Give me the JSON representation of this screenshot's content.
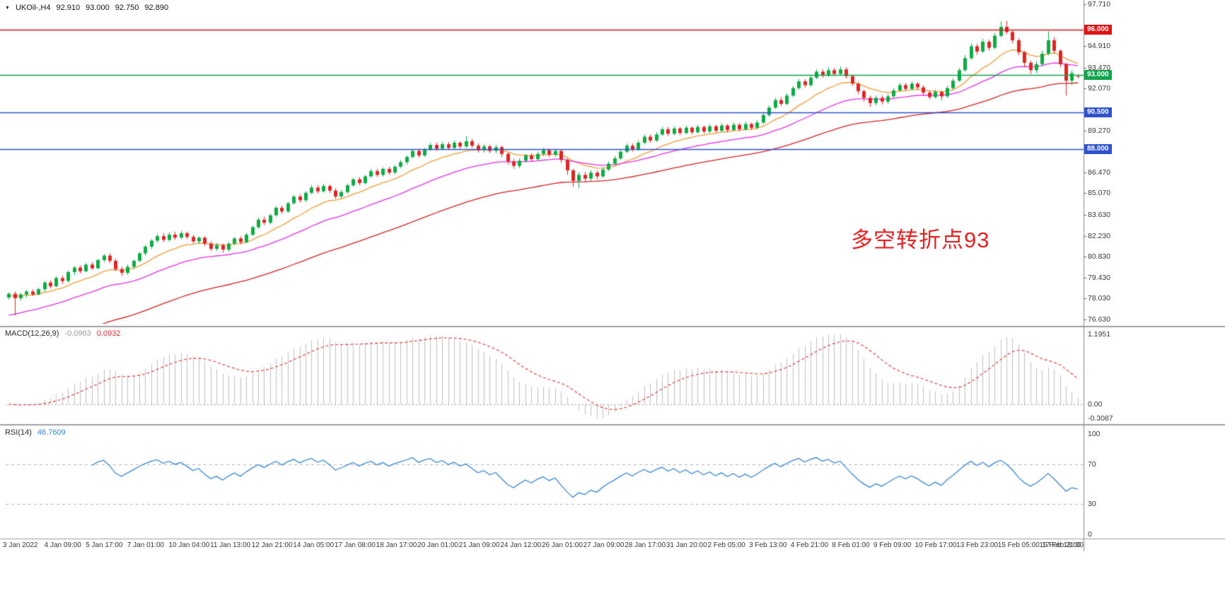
{
  "header": {
    "marker": "▼",
    "symbol": "UKOil-,H4",
    "open": "92.910",
    "high": "93.000",
    "low": "92.750",
    "close": "92.890"
  },
  "colors": {
    "up": "#0fab45",
    "down": "#e02525",
    "macd_hist": "#c0c0c0",
    "macd_signal": "#e03030",
    "rsi_line": "#3a87d4",
    "separator": "#a0a0a0",
    "axis_line": "#8a8a8a",
    "axis_text": "#3a3a3a"
  },
  "chart_data": {
    "type": "candlestick",
    "symbol": "UKOil-",
    "timeframe": "H4",
    "title": "UKOil-,H4 92.910 93.000 92.750 92.890",
    "ylim": [
      76.63,
      97.71
    ],
    "y_ticks": [
      "97.710",
      "94.910",
      "93.470",
      "92.070",
      "89.270",
      "86.470",
      "85.070",
      "83.630",
      "82.230",
      "80.830",
      "79.430",
      "78.030",
      "76.630"
    ],
    "x_ticks": [
      "3 Jan 2022",
      "4 Jan 09:00",
      "5 Jan 17:00",
      "7 Jan 01:00",
      "10 Jan 04:00",
      "11 Jan 13:00",
      "12 Jan 21:00",
      "14 Jan 05:00",
      "17 Jan 08:00",
      "18 Jan 17:00",
      "20 Jan 01:00",
      "21 Jan 09:00",
      "24 Jan 12:00",
      "26 Jan 01:00",
      "27 Jan 09:00",
      "28 Jan 17:00",
      "31 Jan 20:00",
      "2 Feb 05:00",
      "3 Feb 13:00",
      "4 Feb 21:00",
      "8 Feb 01:00",
      "9 Feb 09:00",
      "10 Feb 17:00",
      "13 Feb 23:00",
      "15 Feb 05:00",
      "16 Feb 13:00",
      "17 Feb 21:00"
    ],
    "levels": [
      {
        "price": 96.0,
        "label": "96.000",
        "color": "#e01414"
      },
      {
        "price": 93.0,
        "label": "93.000",
        "color": "#10a54a"
      },
      {
        "price": 90.5,
        "label": "90.500",
        "color": "#2d52cc"
      },
      {
        "price": 88.0,
        "label": "88.000",
        "color": "#2d52cc"
      }
    ],
    "overlays": [
      {
        "name": "ma-fast",
        "color": "#f29b38",
        "period": 12,
        "seed": 78.2
      },
      {
        "name": "ma-mid",
        "color": "#e62ee6",
        "period": 28,
        "seed": 76.8
      },
      {
        "name": "ma-slow",
        "color": "#d62020",
        "period": 60,
        "seed": 74.0
      }
    ],
    "macd": {
      "label": "MACD(12,26,9)",
      "fast": 12,
      "slow": 26,
      "signal": 9,
      "value_text": "-0.0963",
      "signal_text": "0.0932",
      "axis_max": "1.1951",
      "axis_zero": "0.00",
      "axis_min": "-0.3087"
    },
    "rsi": {
      "label": "RSI(14)",
      "period": 14,
      "value_text": "46.7609",
      "levels": [
        70,
        30
      ],
      "axis": [
        "100",
        "70",
        "30",
        "0"
      ]
    },
    "annotation": {
      "text": "多空转折点93",
      "color": "#e82222"
    },
    "candles": [
      [
        78.1,
        78.45,
        77.95,
        78.35
      ],
      [
        78.35,
        78.5,
        76.9,
        78.05
      ],
      [
        78.05,
        78.4,
        77.9,
        78.3
      ],
      [
        78.3,
        78.6,
        78.1,
        78.5
      ],
      [
        78.5,
        78.65,
        78.2,
        78.3
      ],
      [
        78.3,
        78.75,
        78.25,
        78.65
      ],
      [
        78.65,
        79.2,
        78.5,
        79.1
      ],
      [
        79.1,
        79.25,
        78.7,
        78.85
      ],
      [
        78.85,
        79.5,
        78.8,
        79.4
      ],
      [
        79.4,
        79.55,
        79.0,
        79.2
      ],
      [
        79.2,
        79.9,
        79.1,
        79.8
      ],
      [
        79.8,
        80.2,
        79.6,
        80.1
      ],
      [
        80.1,
        80.25,
        79.7,
        79.85
      ],
      [
        79.85,
        80.4,
        79.8,
        80.3
      ],
      [
        80.3,
        80.45,
        79.95,
        80.05
      ],
      [
        80.05,
        80.7,
        80.0,
        80.6
      ],
      [
        80.6,
        81.0,
        80.45,
        80.9
      ],
      [
        80.9,
        81.05,
        80.4,
        80.55
      ],
      [
        80.55,
        80.7,
        79.85,
        80.0
      ],
      [
        80.0,
        80.15,
        79.55,
        79.75
      ],
      [
        79.75,
        80.3,
        79.6,
        80.15
      ],
      [
        80.15,
        80.65,
        80.0,
        80.55
      ],
      [
        80.55,
        81.15,
        80.45,
        81.05
      ],
      [
        81.05,
        81.6,
        80.9,
        81.5
      ],
      [
        81.5,
        82.0,
        81.35,
        81.9
      ],
      [
        81.9,
        82.35,
        81.75,
        82.2
      ],
      [
        82.2,
        82.4,
        81.8,
        81.95
      ],
      [
        81.95,
        82.45,
        81.85,
        82.3
      ],
      [
        82.3,
        82.5,
        81.95,
        82.1
      ],
      [
        82.1,
        82.55,
        82.0,
        82.4
      ],
      [
        82.4,
        82.5,
        82.0,
        82.15
      ],
      [
        82.15,
        82.3,
        81.7,
        81.85
      ],
      [
        81.85,
        82.2,
        81.7,
        82.1
      ],
      [
        82.1,
        82.2,
        81.55,
        81.7
      ],
      [
        81.7,
        81.85,
        81.2,
        81.35
      ],
      [
        81.35,
        81.75,
        81.2,
        81.6
      ],
      [
        81.6,
        81.7,
        81.1,
        81.3
      ],
      [
        81.3,
        81.8,
        81.15,
        81.7
      ],
      [
        81.7,
        82.15,
        81.6,
        82.05
      ],
      [
        82.05,
        82.2,
        81.65,
        81.8
      ],
      [
        81.8,
        82.4,
        81.7,
        82.3
      ],
      [
        82.3,
        82.9,
        82.2,
        82.8
      ],
      [
        82.8,
        83.45,
        82.7,
        83.3
      ],
      [
        83.3,
        83.5,
        82.95,
        83.1
      ],
      [
        83.1,
        83.7,
        83.0,
        83.6
      ],
      [
        83.6,
        84.2,
        83.5,
        84.1
      ],
      [
        84.1,
        84.25,
        83.7,
        83.85
      ],
      [
        83.85,
        84.5,
        83.75,
        84.4
      ],
      [
        84.4,
        84.95,
        84.3,
        84.85
      ],
      [
        84.85,
        85.0,
        84.45,
        84.6
      ],
      [
        84.6,
        85.2,
        84.5,
        85.1
      ],
      [
        85.1,
        85.6,
        85.0,
        85.45
      ],
      [
        85.45,
        85.6,
        85.05,
        85.2
      ],
      [
        85.2,
        85.7,
        85.1,
        85.55
      ],
      [
        85.55,
        85.65,
        85.1,
        85.25
      ],
      [
        85.25,
        85.4,
        84.7,
        84.85
      ],
      [
        84.85,
        85.3,
        84.7,
        85.15
      ],
      [
        85.15,
        85.7,
        85.05,
        85.6
      ],
      [
        85.6,
        86.1,
        85.5,
        86.0
      ],
      [
        86.0,
        86.15,
        85.6,
        85.75
      ],
      [
        85.75,
        86.3,
        85.65,
        86.2
      ],
      [
        86.2,
        86.7,
        86.1,
        86.55
      ],
      [
        86.55,
        86.7,
        86.15,
        86.3
      ],
      [
        86.3,
        86.8,
        86.2,
        86.7
      ],
      [
        86.7,
        86.85,
        86.3,
        86.45
      ],
      [
        86.45,
        86.95,
        86.35,
        86.85
      ],
      [
        86.85,
        87.3,
        86.75,
        87.15
      ],
      [
        87.15,
        87.6,
        87.0,
        87.5
      ],
      [
        87.5,
        88.0,
        87.4,
        87.9
      ],
      [
        87.9,
        88.05,
        87.45,
        87.6
      ],
      [
        87.6,
        88.1,
        87.5,
        88.0
      ],
      [
        88.0,
        88.45,
        87.9,
        88.3
      ],
      [
        88.3,
        88.45,
        87.9,
        88.05
      ],
      [
        88.05,
        88.5,
        87.95,
        88.35
      ],
      [
        88.35,
        88.5,
        87.95,
        88.1
      ],
      [
        88.1,
        88.6,
        88.0,
        88.45
      ],
      [
        88.45,
        88.55,
        88.05,
        88.2
      ],
      [
        88.2,
        88.9,
        88.1,
        88.55
      ],
      [
        88.55,
        88.7,
        88.1,
        88.25
      ],
      [
        88.25,
        88.4,
        87.8,
        87.95
      ],
      [
        87.95,
        88.35,
        87.8,
        88.2
      ],
      [
        88.2,
        88.3,
        87.75,
        87.9
      ],
      [
        87.9,
        88.3,
        87.75,
        88.15
      ],
      [
        88.15,
        88.25,
        87.5,
        87.7
      ],
      [
        87.7,
        87.8,
        87.0,
        87.2
      ],
      [
        87.2,
        87.35,
        86.7,
        86.9
      ],
      [
        86.9,
        87.4,
        86.75,
        87.25
      ],
      [
        87.25,
        87.7,
        87.1,
        87.6
      ],
      [
        87.6,
        87.75,
        87.2,
        87.35
      ],
      [
        87.35,
        87.85,
        87.25,
        87.7
      ],
      [
        87.7,
        88.1,
        87.55,
        87.95
      ],
      [
        87.95,
        88.05,
        87.5,
        87.65
      ],
      [
        87.65,
        88.0,
        87.5,
        87.9
      ],
      [
        87.9,
        88.0,
        87.1,
        87.3
      ],
      [
        87.3,
        87.4,
        86.3,
        86.6
      ],
      [
        86.6,
        86.7,
        85.5,
        85.9
      ],
      [
        85.9,
        86.5,
        85.4,
        86.3
      ],
      [
        86.3,
        86.5,
        85.8,
        86.05
      ],
      [
        86.05,
        86.6,
        85.9,
        86.45
      ],
      [
        86.45,
        86.6,
        86.0,
        86.2
      ],
      [
        86.2,
        86.8,
        86.1,
        86.65
      ],
      [
        86.65,
        87.2,
        86.55,
        87.05
      ],
      [
        87.05,
        87.55,
        86.95,
        87.4
      ],
      [
        87.4,
        87.95,
        87.3,
        87.85
      ],
      [
        87.85,
        88.4,
        87.75,
        88.25
      ],
      [
        88.25,
        88.4,
        87.85,
        88.0
      ],
      [
        88.0,
        88.6,
        87.9,
        88.45
      ],
      [
        88.45,
        89.0,
        88.35,
        88.85
      ],
      [
        88.85,
        89.0,
        88.45,
        88.6
      ],
      [
        88.6,
        89.15,
        88.5,
        89.0
      ],
      [
        89.0,
        89.5,
        88.9,
        89.35
      ],
      [
        89.35,
        89.5,
        88.9,
        89.05
      ],
      [
        89.05,
        89.55,
        88.95,
        89.4
      ],
      [
        89.4,
        89.5,
        88.95,
        89.1
      ],
      [
        89.1,
        89.6,
        89.0,
        89.45
      ],
      [
        89.45,
        89.55,
        89.0,
        89.15
      ],
      [
        89.15,
        89.65,
        89.05,
        89.5
      ],
      [
        89.5,
        89.6,
        89.05,
        89.2
      ],
      [
        89.2,
        89.7,
        89.1,
        89.55
      ],
      [
        89.55,
        89.65,
        89.1,
        89.25
      ],
      [
        89.25,
        89.75,
        89.15,
        89.6
      ],
      [
        89.6,
        89.7,
        89.15,
        89.3
      ],
      [
        89.3,
        89.8,
        89.2,
        89.65
      ],
      [
        89.65,
        89.75,
        89.2,
        89.35
      ],
      [
        89.35,
        89.85,
        89.25,
        89.7
      ],
      [
        89.7,
        89.8,
        89.3,
        89.45
      ],
      [
        89.45,
        89.95,
        89.35,
        89.8
      ],
      [
        89.8,
        90.45,
        89.7,
        90.3
      ],
      [
        90.3,
        90.95,
        90.2,
        90.8
      ],
      [
        90.8,
        91.45,
        90.7,
        91.3
      ],
      [
        91.3,
        91.5,
        90.9,
        91.05
      ],
      [
        91.05,
        91.75,
        90.95,
        91.6
      ],
      [
        91.6,
        92.25,
        91.5,
        92.1
      ],
      [
        92.1,
        92.7,
        92.0,
        92.55
      ],
      [
        92.55,
        92.7,
        92.15,
        92.3
      ],
      [
        92.3,
        92.95,
        92.2,
        92.8
      ],
      [
        92.8,
        93.35,
        92.7,
        93.2
      ],
      [
        93.2,
        93.35,
        92.8,
        92.95
      ],
      [
        92.95,
        93.5,
        92.85,
        93.3
      ],
      [
        93.3,
        93.45,
        92.9,
        93.05
      ],
      [
        93.05,
        93.55,
        92.95,
        93.35
      ],
      [
        93.35,
        93.5,
        92.75,
        92.9
      ],
      [
        92.9,
        93.0,
        92.25,
        92.4
      ],
      [
        92.4,
        92.5,
        91.7,
        91.9
      ],
      [
        91.9,
        92.0,
        91.2,
        91.45
      ],
      [
        91.45,
        91.6,
        90.85,
        91.1
      ],
      [
        91.1,
        91.6,
        90.95,
        91.45
      ],
      [
        91.45,
        91.6,
        91.0,
        91.2
      ],
      [
        91.2,
        91.7,
        91.05,
        91.55
      ],
      [
        91.55,
        92.1,
        91.45,
        91.95
      ],
      [
        91.95,
        92.45,
        91.85,
        92.3
      ],
      [
        92.3,
        92.45,
        91.9,
        92.05
      ],
      [
        92.05,
        92.55,
        91.95,
        92.4
      ],
      [
        92.4,
        92.5,
        92.0,
        92.15
      ],
      [
        92.15,
        92.3,
        91.65,
        91.8
      ],
      [
        91.8,
        91.95,
        91.35,
        91.5
      ],
      [
        91.5,
        92.0,
        91.4,
        91.85
      ],
      [
        91.85,
        91.95,
        91.3,
        91.55
      ],
      [
        91.55,
        92.25,
        91.45,
        92.1
      ],
      [
        92.1,
        92.75,
        92.0,
        92.6
      ],
      [
        92.6,
        93.45,
        92.5,
        93.3
      ],
      [
        93.3,
        94.3,
        93.2,
        94.1
      ],
      [
        94.1,
        95.1,
        94.0,
        94.9
      ],
      [
        94.9,
        95.05,
        94.35,
        94.55
      ],
      [
        94.55,
        95.4,
        94.45,
        95.2
      ],
      [
        95.2,
        95.35,
        94.6,
        94.8
      ],
      [
        94.8,
        95.8,
        94.7,
        95.6
      ],
      [
        95.6,
        96.55,
        95.5,
        96.2
      ],
      [
        96.2,
        96.6,
        95.7,
        95.85
      ],
      [
        95.85,
        96.0,
        95.1,
        95.3
      ],
      [
        95.3,
        95.45,
        94.3,
        94.5
      ],
      [
        94.5,
        94.6,
        93.5,
        93.8
      ],
      [
        93.8,
        93.95,
        93.05,
        93.3
      ],
      [
        93.3,
        93.9,
        93.1,
        93.7
      ],
      [
        93.7,
        94.6,
        93.6,
        94.4
      ],
      [
        94.4,
        95.9,
        94.3,
        95.3
      ],
      [
        95.3,
        95.5,
        94.4,
        94.6
      ],
      [
        94.6,
        94.7,
        93.5,
        93.7
      ],
      [
        93.7,
        93.8,
        91.6,
        92.6
      ],
      [
        92.6,
        93.3,
        92.3,
        93.1
      ],
      [
        92.91,
        93.0,
        92.75,
        92.89
      ]
    ]
  }
}
